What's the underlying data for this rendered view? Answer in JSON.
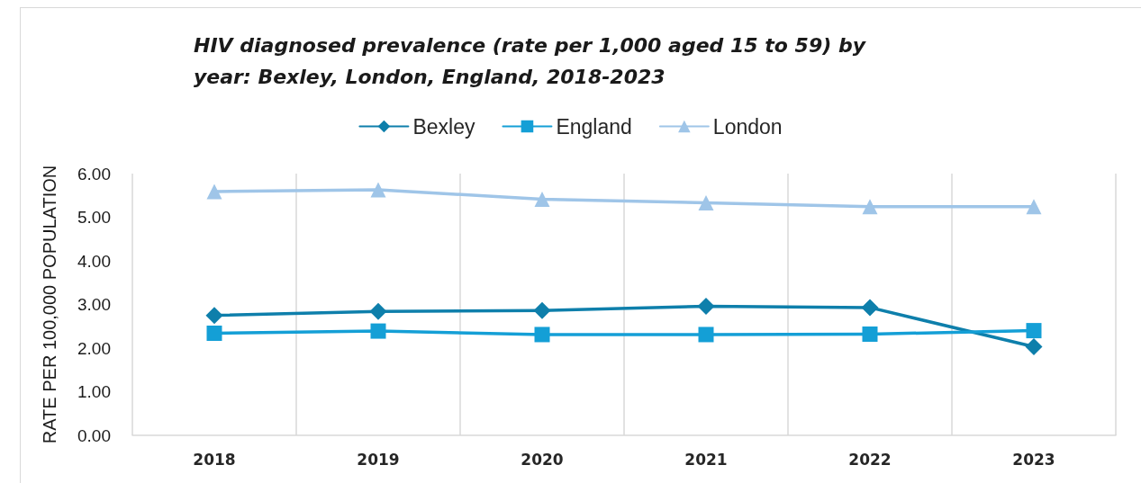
{
  "chart_data": {
    "type": "line",
    "title": "HIV diagnosed prevalence (rate per 1,000 aged 15 to 59) by year: Bexley, London, England, 2018-2023",
    "ylabel": "RATE PER 100,000 POPULATION",
    "categories": [
      "2018",
      "2019",
      "2020",
      "2021",
      "2022",
      "2023"
    ],
    "series": [
      {
        "name": "Bexley",
        "color": "#0e7fab",
        "marker": "diamond",
        "values": [
          2.75,
          2.84,
          2.86,
          2.96,
          2.93,
          2.03
        ]
      },
      {
        "name": "England",
        "color": "#149fd6",
        "marker": "square",
        "values": [
          2.34,
          2.39,
          2.31,
          2.31,
          2.32,
          2.4
        ]
      },
      {
        "name": "London",
        "color": "#9fc5e8",
        "marker": "triangle",
        "values": [
          5.59,
          5.63,
          5.41,
          5.33,
          5.24,
          5.24
        ]
      }
    ],
    "ylim": [
      0,
      6
    ],
    "yticks": [
      {
        "value": 0,
        "label": "0.00"
      },
      {
        "value": 1,
        "label": "1.00"
      },
      {
        "value": 2,
        "label": "2.00"
      },
      {
        "value": 3,
        "label": "3.00"
      },
      {
        "value": 4,
        "label": "4.00"
      },
      {
        "value": 5,
        "label": "5.00"
      },
      {
        "value": 6,
        "label": "6.00"
      }
    ],
    "grid": "x",
    "legend": "top",
    "line_style": "solid"
  }
}
